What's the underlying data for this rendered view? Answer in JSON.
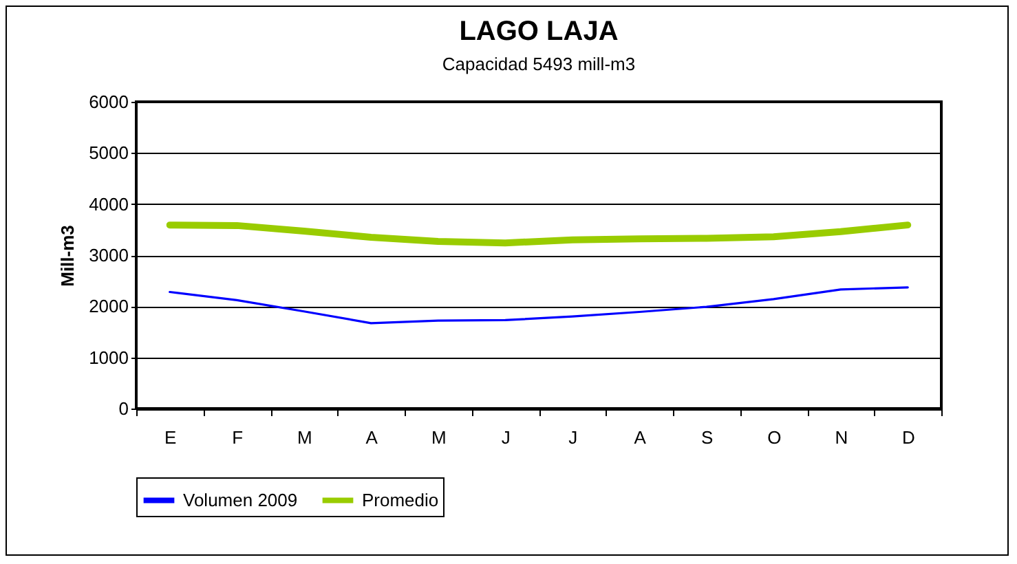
{
  "chart_data": {
    "type": "line",
    "title": "LAGO LAJA",
    "subtitle": "Capacidad  5493 mill-m3",
    "ylabel": "Mill-m3",
    "categories": [
      "E",
      "F",
      "M",
      "A",
      "M",
      "J",
      "J",
      "A",
      "S",
      "O",
      "N",
      "D"
    ],
    "series": [
      {
        "name": "Volumen  2009",
        "color": "#0000ff",
        "values": [
          2280,
          2120,
          1900,
          1670,
          1720,
          1730,
          1800,
          1890,
          1990,
          2140,
          2330,
          2370
        ]
      },
      {
        "name": "Promedio",
        "color": "#99cc00",
        "values": [
          3590,
          3580,
          3470,
          3350,
          3270,
          3240,
          3300,
          3320,
          3330,
          3360,
          3460,
          3590
        ]
      }
    ],
    "ylim": [
      0,
      6000
    ],
    "yticks": [
      0,
      1000,
      2000,
      3000,
      4000,
      5000,
      6000
    ],
    "grid": "y",
    "legend": "bottom"
  }
}
